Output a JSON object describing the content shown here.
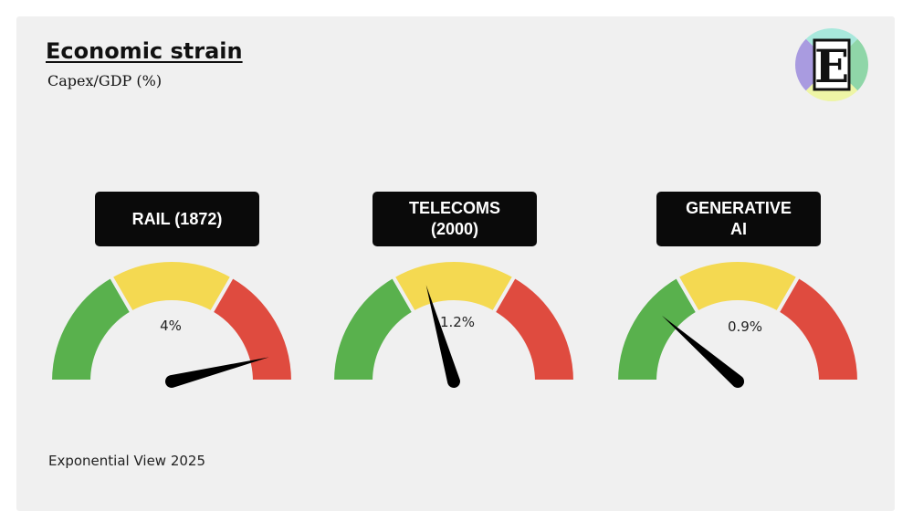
{
  "header": {
    "title": "Economic strain",
    "subtitle": "Capex/GDP (%)"
  },
  "footer": {
    "text": "Exponential View 2025"
  },
  "logo": {
    "letter": "E",
    "colors": [
      "#a99be0",
      "#a8e8dc",
      "#eef5a6",
      "#8fd6a8"
    ]
  },
  "colors": {
    "green": "#59b14d",
    "yellow": "#f4d951",
    "red": "#df4b3f",
    "needle": "#000000"
  },
  "chart_data": [
    {
      "type": "gauge",
      "category": "RAIL (1872)",
      "label": "RAIL (1872)",
      "value": 4,
      "value_label": "4%",
      "needle_angle_deg": 14,
      "zones": [
        "green",
        "yellow",
        "red"
      ]
    },
    {
      "type": "gauge",
      "category": "TELECOMS (2000)",
      "label": "TELECOMS\n(2000)",
      "value": 1.2,
      "value_label": "1.2%",
      "needle_angle_deg": 106,
      "zones": [
        "green",
        "yellow",
        "red"
      ]
    },
    {
      "type": "gauge",
      "category": "GENERATIVE AI",
      "label": "GENERATIVE\nAI",
      "value": 0.9,
      "value_label": "0.9%",
      "needle_angle_deg": 139,
      "zones": [
        "green",
        "yellow",
        "red"
      ]
    }
  ]
}
